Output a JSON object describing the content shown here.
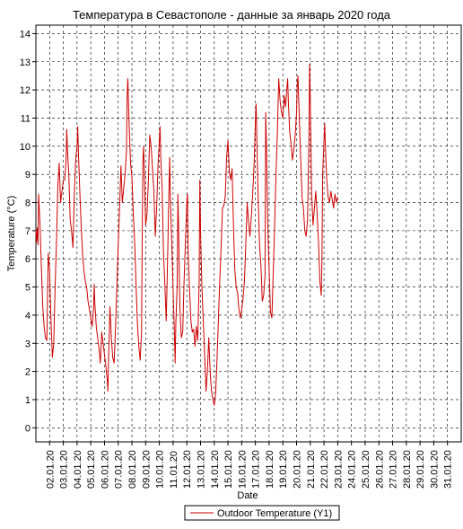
{
  "chart_data": {
    "type": "line",
    "title": "Температура в Севастополе - данные за январь 2020 года",
    "xlabel": "Date",
    "ylabel": "Temperature (°C)",
    "ylim": [
      -0.5,
      14.3
    ],
    "xlim": [
      1.0,
      32.0
    ],
    "yticks": [
      0,
      1,
      2,
      3,
      4,
      5,
      6,
      7,
      8,
      9,
      10,
      11,
      12,
      13,
      14
    ],
    "xticks": [
      {
        "day": 2,
        "label": "02.01.20"
      },
      {
        "day": 3,
        "label": "03.01.20"
      },
      {
        "day": 4,
        "label": "04.01.20"
      },
      {
        "day": 5,
        "label": "05.01.20"
      },
      {
        "day": 6,
        "label": "06.01.20"
      },
      {
        "day": 7,
        "label": "07.01.20"
      },
      {
        "day": 8,
        "label": "08.01.20"
      },
      {
        "day": 9,
        "label": "09.01.20"
      },
      {
        "day": 10,
        "label": "10.01.20"
      },
      {
        "day": 11,
        "label": "11.01.20"
      },
      {
        "day": 12,
        "label": "12.01.20"
      },
      {
        "day": 13,
        "label": "13.01.20"
      },
      {
        "day": 14,
        "label": "14.01.20"
      },
      {
        "day": 15,
        "label": "15.01.20"
      },
      {
        "day": 16,
        "label": "16.01.20"
      },
      {
        "day": 17,
        "label": "17.01.20"
      },
      {
        "day": 18,
        "label": "18.01.20"
      },
      {
        "day": 19,
        "label": "19.01.20"
      },
      {
        "day": 20,
        "label": "20.01.20"
      },
      {
        "day": 21,
        "label": "21.01.20"
      },
      {
        "day": 22,
        "label": "22.01.20"
      },
      {
        "day": 23,
        "label": "23.01.20"
      },
      {
        "day": 24,
        "label": "24.01.20"
      },
      {
        "day": 25,
        "label": "25.01.20"
      },
      {
        "day": 26,
        "label": "26.01.20"
      },
      {
        "day": 27,
        "label": "27.01.20"
      },
      {
        "day": 28,
        "label": "28.01.20"
      },
      {
        "day": 29,
        "label": "29.01.20"
      },
      {
        "day": 30,
        "label": "30.01.20"
      },
      {
        "day": 31,
        "label": "31.01.20"
      }
    ],
    "grid": true,
    "legend_position": "bottom-center",
    "series": [
      {
        "name": "Outdoor Temperature (Y1)",
        "color": "#cc0000",
        "points": [
          [
            1.0,
            7.0
          ],
          [
            1.05,
            6.6
          ],
          [
            1.1,
            7.1
          ],
          [
            1.15,
            6.5
          ],
          [
            1.2,
            8.3
          ],
          [
            1.3,
            7.2
          ],
          [
            1.4,
            5.7
          ],
          [
            1.5,
            4.3
          ],
          [
            1.6,
            3.6
          ],
          [
            1.7,
            3.2
          ],
          [
            1.8,
            3.1
          ],
          [
            1.9,
            6.2
          ],
          [
            2.0,
            5.6
          ],
          [
            2.1,
            3.8
          ],
          [
            2.2,
            2.5
          ],
          [
            2.3,
            3.0
          ],
          [
            2.4,
            5.0
          ],
          [
            2.5,
            6.6
          ],
          [
            2.6,
            8.6
          ],
          [
            2.7,
            9.4
          ],
          [
            2.8,
            8.0
          ],
          [
            2.9,
            8.4
          ],
          [
            3.0,
            8.8
          ],
          [
            3.1,
            8.8
          ],
          [
            3.2,
            9.5
          ],
          [
            3.25,
            10.6
          ],
          [
            3.3,
            9.9
          ],
          [
            3.4,
            9.0
          ],
          [
            3.5,
            7.4
          ],
          [
            3.6,
            7.0
          ],
          [
            3.7,
            6.4
          ],
          [
            3.8,
            8.3
          ],
          [
            3.9,
            9.5
          ],
          [
            4.0,
            10.0
          ],
          [
            4.05,
            10.7
          ],
          [
            4.1,
            9.8
          ],
          [
            4.2,
            8.4
          ],
          [
            4.3,
            7.2
          ],
          [
            4.4,
            6.2
          ],
          [
            4.5,
            5.6
          ],
          [
            4.6,
            5.2
          ],
          [
            4.7,
            5.0
          ],
          [
            4.8,
            4.5
          ],
          [
            4.9,
            4.2
          ],
          [
            5.0,
            3.9
          ],
          [
            5.1,
            3.6
          ],
          [
            5.2,
            4.2
          ],
          [
            5.25,
            5.1
          ],
          [
            5.3,
            4.4
          ],
          [
            5.4,
            3.6
          ],
          [
            5.5,
            3.2
          ],
          [
            5.6,
            2.8
          ],
          [
            5.7,
            2.3
          ],
          [
            5.8,
            3.4
          ],
          [
            5.9,
            3.0
          ],
          [
            6.0,
            2.6
          ],
          [
            6.1,
            2.2
          ],
          [
            6.2,
            1.7
          ],
          [
            6.25,
            1.3
          ],
          [
            6.3,
            2.5
          ],
          [
            6.4,
            4.3
          ],
          [
            6.5,
            3.2
          ],
          [
            6.6,
            2.5
          ],
          [
            6.7,
            2.3
          ],
          [
            6.8,
            3.5
          ],
          [
            6.9,
            5.0
          ],
          [
            7.0,
            6.5
          ],
          [
            7.1,
            7.8
          ],
          [
            7.2,
            9.3
          ],
          [
            7.3,
            8.0
          ],
          [
            7.4,
            8.5
          ],
          [
            7.5,
            9.0
          ],
          [
            7.6,
            9.8
          ],
          [
            7.65,
            11.8
          ],
          [
            7.7,
            12.4
          ],
          [
            7.8,
            10.7
          ],
          [
            7.9,
            9.4
          ],
          [
            8.0,
            8.9
          ],
          [
            8.1,
            7.6
          ],
          [
            8.2,
            6.6
          ],
          [
            8.3,
            5.1
          ],
          [
            8.4,
            3.7
          ],
          [
            8.5,
            2.9
          ],
          [
            8.6,
            2.4
          ],
          [
            8.7,
            3.4
          ],
          [
            8.75,
            6.8
          ],
          [
            8.8,
            9.5
          ],
          [
            8.85,
            10.0
          ],
          [
            8.9,
            9.2
          ],
          [
            9.0,
            7.2
          ],
          [
            9.1,
            7.6
          ],
          [
            9.2,
            8.8
          ],
          [
            9.3,
            10.4
          ],
          [
            9.4,
            10.0
          ],
          [
            9.5,
            9.2
          ],
          [
            9.6,
            8.4
          ],
          [
            9.7,
            6.8
          ],
          [
            9.8,
            7.8
          ],
          [
            9.9,
            9.3
          ],
          [
            10.0,
            10.2
          ],
          [
            10.05,
            10.7
          ],
          [
            10.1,
            9.6
          ],
          [
            10.2,
            8.5
          ],
          [
            10.3,
            6.2
          ],
          [
            10.4,
            5.1
          ],
          [
            10.5,
            3.8
          ],
          [
            10.6,
            6.0
          ],
          [
            10.7,
            8.5
          ],
          [
            10.75,
            9.6
          ],
          [
            10.8,
            8.2
          ],
          [
            10.9,
            6.6
          ],
          [
            11.0,
            4.9
          ],
          [
            11.1,
            3.3
          ],
          [
            11.15,
            2.3
          ],
          [
            11.2,
            3.7
          ],
          [
            11.3,
            5.1
          ],
          [
            11.35,
            8.3
          ],
          [
            11.4,
            7.2
          ],
          [
            11.5,
            4.2
          ],
          [
            11.6,
            3.2
          ],
          [
            11.7,
            3.4
          ],
          [
            11.8,
            5.2
          ],
          [
            11.9,
            6.6
          ],
          [
            12.0,
            8.0
          ],
          [
            12.05,
            8.3
          ],
          [
            12.1,
            6.2
          ],
          [
            12.2,
            4.9
          ],
          [
            12.3,
            3.8
          ],
          [
            12.4,
            3.4
          ],
          [
            12.5,
            3.5
          ],
          [
            12.6,
            2.9
          ],
          [
            12.7,
            3.6
          ],
          [
            12.8,
            3.1
          ],
          [
            12.9,
            5.2
          ],
          [
            12.95,
            8.8
          ],
          [
            13.0,
            7.0
          ],
          [
            13.1,
            5.0
          ],
          [
            13.2,
            3.8
          ],
          [
            13.3,
            2.6
          ],
          [
            13.4,
            1.3
          ],
          [
            13.5,
            2.0
          ],
          [
            13.6,
            3.2
          ],
          [
            13.7,
            2.0
          ],
          [
            13.8,
            1.3
          ],
          [
            13.9,
            1.0
          ],
          [
            14.0,
            0.8
          ],
          [
            14.1,
            1.2
          ],
          [
            14.2,
            2.4
          ],
          [
            14.3,
            3.8
          ],
          [
            14.4,
            5.2
          ],
          [
            14.5,
            6.4
          ],
          [
            14.6,
            7.8
          ],
          [
            14.7,
            7.9
          ],
          [
            14.8,
            8.2
          ],
          [
            14.9,
            9.6
          ],
          [
            15.0,
            10.2
          ],
          [
            15.1,
            9.1
          ],
          [
            15.2,
            8.8
          ],
          [
            15.3,
            9.2
          ],
          [
            15.4,
            7.2
          ],
          [
            15.5,
            5.6
          ],
          [
            15.6,
            5.0
          ],
          [
            15.7,
            4.8
          ],
          [
            15.8,
            4.2
          ],
          [
            15.9,
            3.9
          ],
          [
            16.0,
            4.2
          ],
          [
            16.1,
            4.6
          ],
          [
            16.2,
            5.2
          ],
          [
            16.3,
            6.5
          ],
          [
            16.4,
            8.0
          ],
          [
            16.5,
            7.3
          ],
          [
            16.6,
            6.8
          ],
          [
            16.7,
            7.5
          ],
          [
            16.8,
            8.3
          ],
          [
            16.9,
            9.3
          ],
          [
            17.0,
            10.9
          ],
          [
            17.05,
            11.5
          ],
          [
            17.1,
            10.4
          ],
          [
            17.2,
            8.2
          ],
          [
            17.3,
            6.5
          ],
          [
            17.4,
            5.8
          ],
          [
            17.5,
            4.5
          ],
          [
            17.6,
            4.7
          ],
          [
            17.7,
            5.4
          ],
          [
            17.75,
            11.2
          ],
          [
            17.8,
            10.2
          ],
          [
            17.9,
            7.2
          ],
          [
            18.0,
            5.6
          ],
          [
            18.1,
            4.1
          ],
          [
            18.2,
            3.9
          ],
          [
            18.3,
            5.5
          ],
          [
            18.4,
            7.2
          ],
          [
            18.5,
            9.0
          ],
          [
            18.6,
            10.5
          ],
          [
            18.7,
            12.4
          ],
          [
            18.8,
            11.6
          ],
          [
            18.9,
            11.2
          ],
          [
            19.0,
            11.0
          ],
          [
            19.1,
            11.8
          ],
          [
            19.2,
            11.4
          ],
          [
            19.3,
            12.1
          ],
          [
            19.35,
            12.4
          ],
          [
            19.4,
            11.6
          ],
          [
            19.5,
            10.5
          ],
          [
            19.6,
            10.1
          ],
          [
            19.7,
            9.5
          ],
          [
            19.8,
            9.9
          ],
          [
            19.9,
            10.4
          ],
          [
            20.0,
            11.2
          ],
          [
            20.05,
            12.2
          ],
          [
            20.1,
            12.5
          ],
          [
            20.2,
            11.0
          ],
          [
            20.3,
            9.6
          ],
          [
            20.4,
            8.2
          ],
          [
            20.5,
            7.8
          ],
          [
            20.6,
            7.0
          ],
          [
            20.7,
            6.8
          ],
          [
            20.8,
            7.4
          ],
          [
            20.9,
            10.2
          ],
          [
            20.95,
            12.9
          ],
          [
            21.0,
            11.6
          ],
          [
            21.1,
            8.3
          ],
          [
            21.2,
            7.2
          ],
          [
            21.3,
            7.8
          ],
          [
            21.4,
            8.4
          ],
          [
            21.5,
            7.6
          ],
          [
            21.6,
            6.6
          ],
          [
            21.7,
            5.2
          ],
          [
            21.8,
            4.7
          ],
          [
            21.85,
            5.9
          ],
          [
            21.9,
            9.0
          ],
          [
            22.0,
            10.2
          ],
          [
            22.05,
            10.8
          ],
          [
            22.1,
            10.0
          ],
          [
            22.2,
            8.8
          ],
          [
            22.3,
            8.2
          ],
          [
            22.4,
            8.0
          ],
          [
            22.5,
            8.4
          ],
          [
            22.6,
            8.1
          ],
          [
            22.7,
            7.8
          ],
          [
            22.8,
            8.3
          ],
          [
            22.9,
            8.0
          ],
          [
            23.0,
            8.2
          ]
        ]
      }
    ]
  },
  "legend": {
    "label": "Outdoor Temperature (Y1)"
  }
}
